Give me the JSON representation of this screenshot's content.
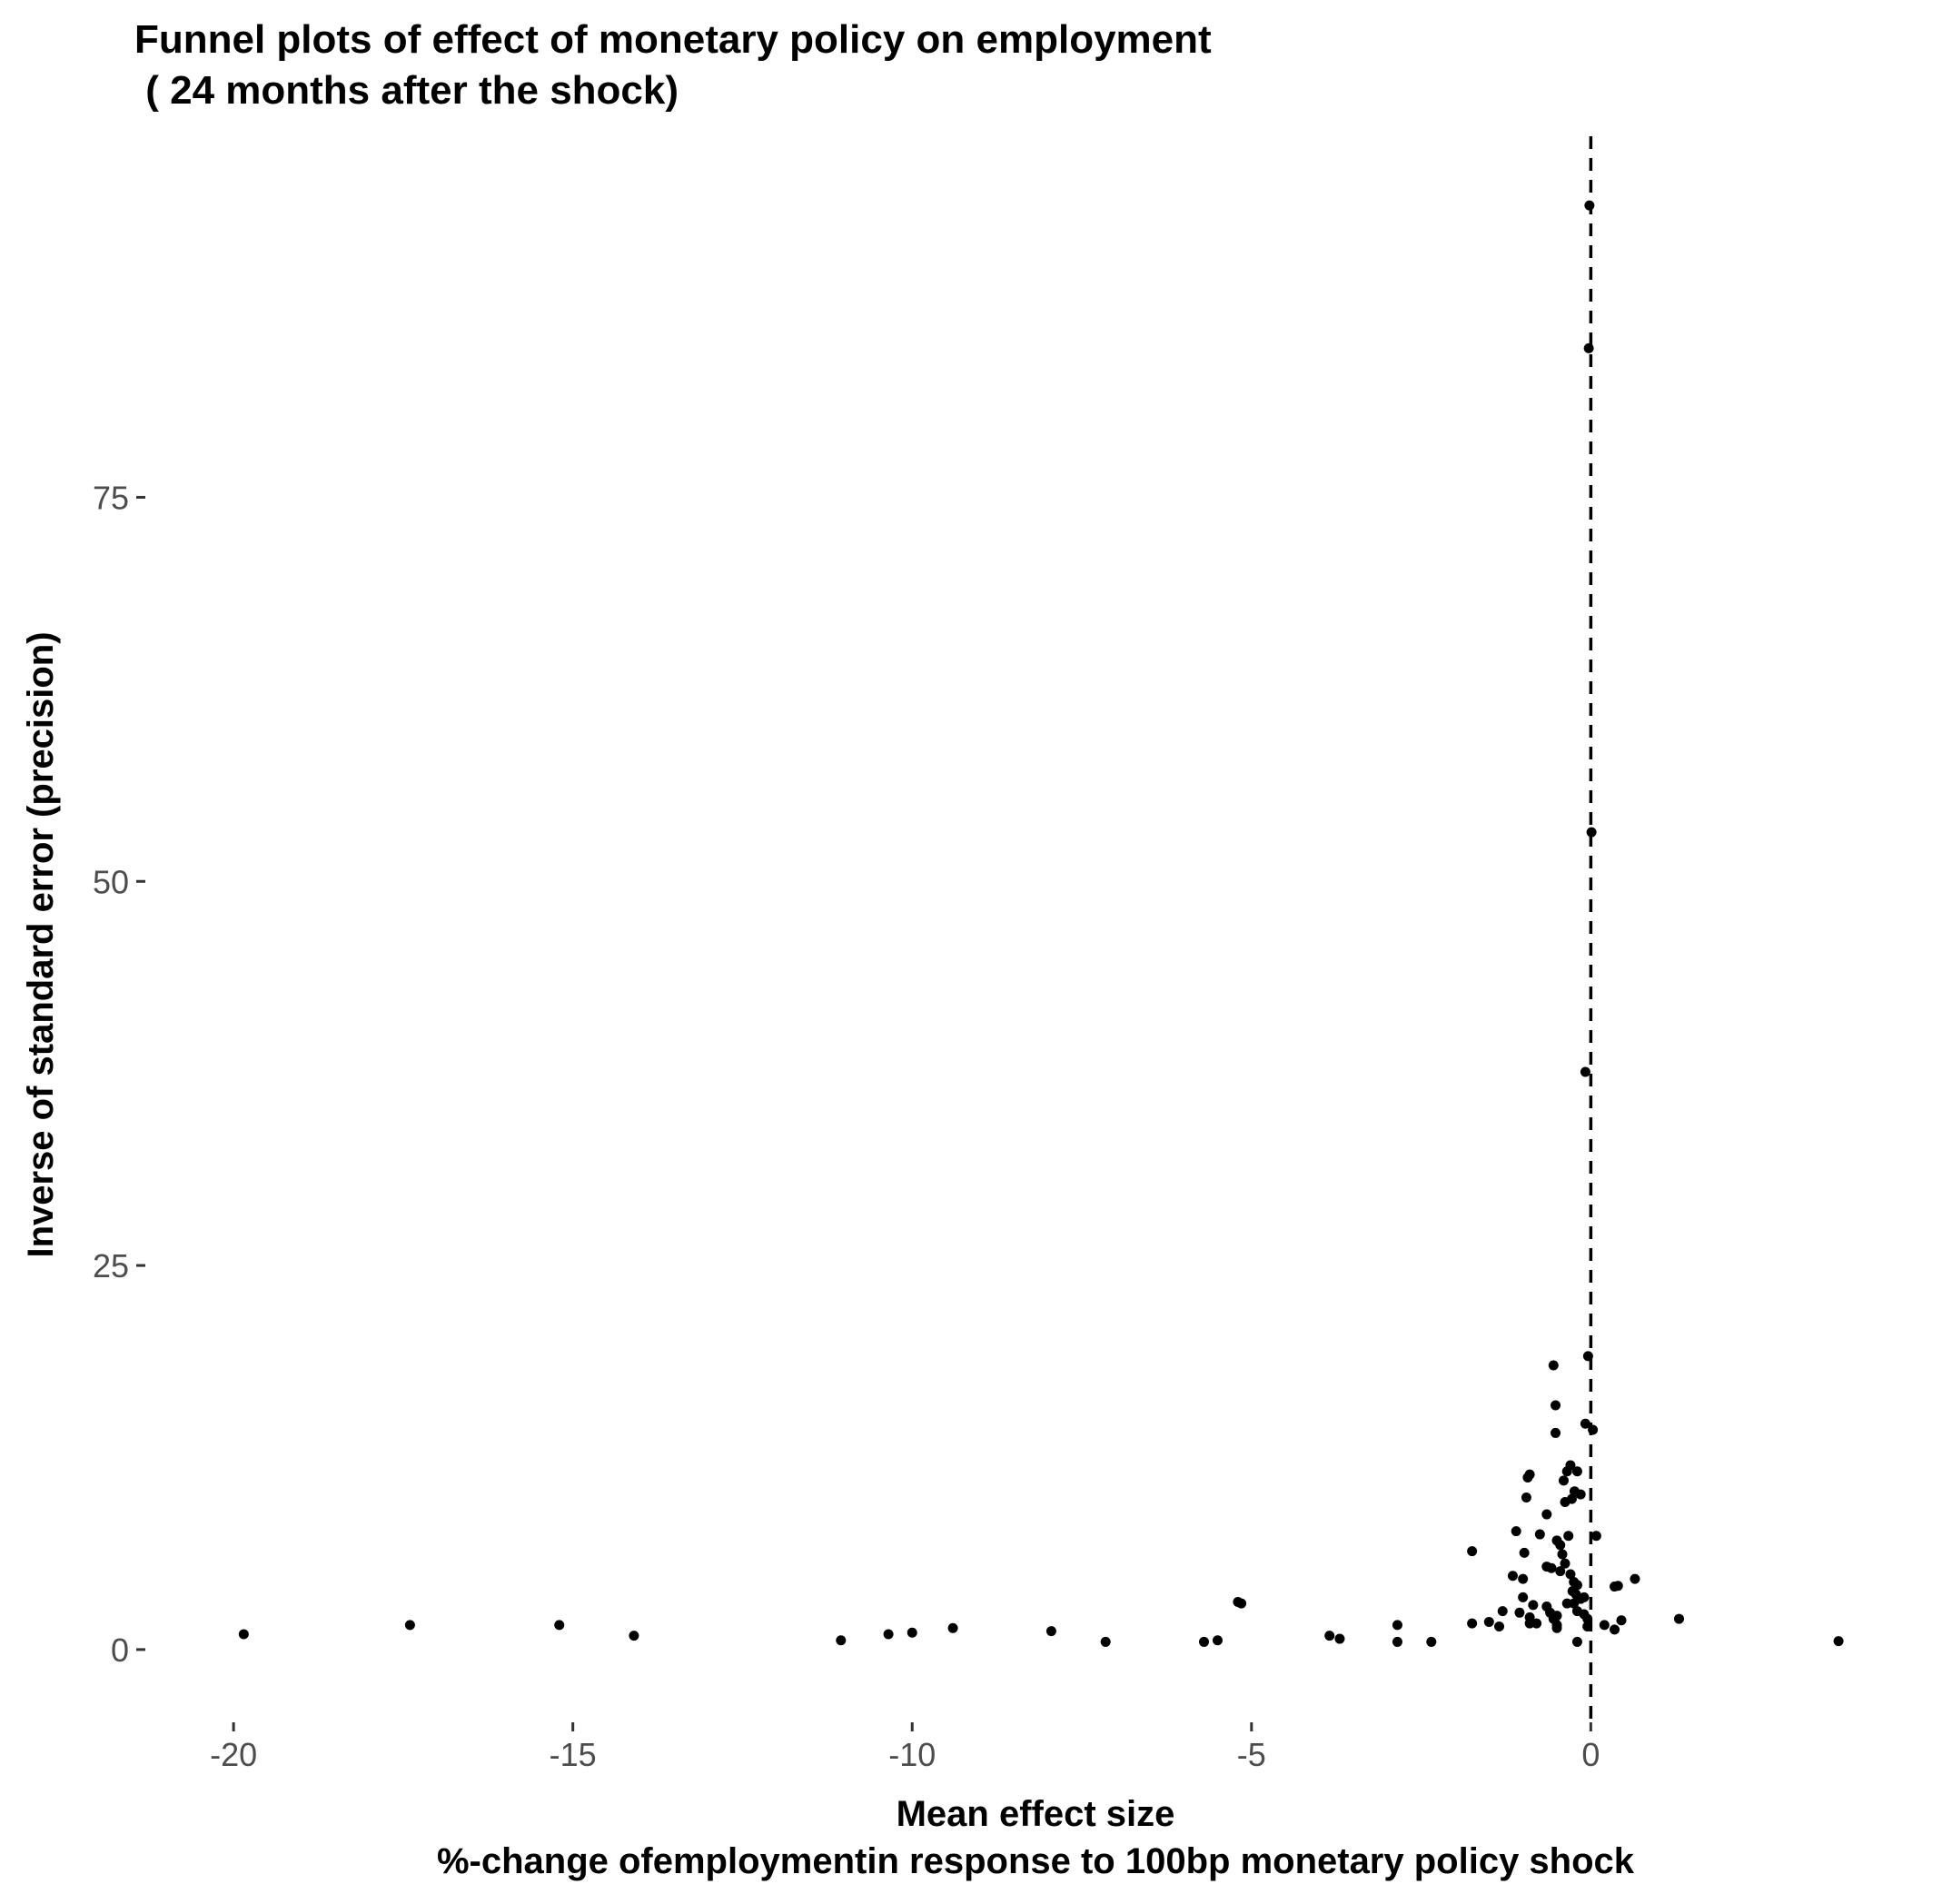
{
  "chart_data": {
    "type": "scatter",
    "title_lines": [
      "Funnel plots of effect of monetary policy on employment",
      " ( 24 months after the shock)"
    ],
    "xlabel_lines": [
      "Mean effect size",
      "%-change ofemploymentin response to 100bp monetary policy shock"
    ],
    "ylabel": "Inverse of standard error (precision)",
    "xlim": [
      -21.3,
      4.8
    ],
    "ylim": [
      -4.5,
      98.5
    ],
    "x_ticks": [
      {
        "value": -20,
        "label": "-20"
      },
      {
        "value": -15,
        "label": "-15"
      },
      {
        "value": -10,
        "label": "-10"
      },
      {
        "value": -5,
        "label": "-5"
      },
      {
        "value": 0,
        "label": "0"
      }
    ],
    "y_ticks": [
      {
        "value": 0,
        "label": "0"
      },
      {
        "value": 25,
        "label": "25"
      },
      {
        "value": 50,
        "label": "50"
      },
      {
        "value": 75,
        "label": "75"
      }
    ],
    "grid": false,
    "reference_line": {
      "x": 0,
      "style": "dashed"
    },
    "points": [
      {
        "x": -0.02,
        "y": 94.0
      },
      {
        "x": -0.03,
        "y": 84.7
      },
      {
        "x": 0.01,
        "y": 53.2
      },
      {
        "x": -0.08,
        "y": 37.6
      },
      {
        "x": -0.04,
        "y": 19.1
      },
      {
        "x": -0.55,
        "y": 18.5
      },
      {
        "x": -0.52,
        "y": 15.9
      },
      {
        "x": -0.52,
        "y": 14.1
      },
      {
        "x": -0.08,
        "y": 14.7
      },
      {
        "x": 0.03,
        "y": 14.3
      },
      {
        "x": -0.9,
        "y": 11.4
      },
      {
        "x": -0.93,
        "y": 11.2
      },
      {
        "x": -0.4,
        "y": 11.0
      },
      {
        "x": -0.35,
        "y": 11.6
      },
      {
        "x": -0.3,
        "y": 12.0
      },
      {
        "x": -0.2,
        "y": 11.6
      },
      {
        "x": -0.95,
        "y": 9.9
      },
      {
        "x": -0.38,
        "y": 9.6
      },
      {
        "x": -0.28,
        "y": 9.8
      },
      {
        "x": -0.24,
        "y": 10.3
      },
      {
        "x": -0.15,
        "y": 10.1
      },
      {
        "x": -0.65,
        "y": 8.8
      },
      {
        "x": -1.1,
        "y": 7.7
      },
      {
        "x": -0.75,
        "y": 7.5
      },
      {
        "x": -0.5,
        "y": 7.1
      },
      {
        "x": -0.45,
        "y": 6.8
      },
      {
        "x": -0.33,
        "y": 7.4
      },
      {
        "x": 0.08,
        "y": 7.4
      },
      {
        "x": -1.75,
        "y": 6.4
      },
      {
        "x": -0.98,
        "y": 6.3
      },
      {
        "x": -0.42,
        "y": 6.2
      },
      {
        "x": -0.65,
        "y": 5.4
      },
      {
        "x": -0.58,
        "y": 5.3
      },
      {
        "x": -0.38,
        "y": 5.6
      },
      {
        "x": -0.45,
        "y": 5.1
      },
      {
        "x": -1.15,
        "y": 4.8
      },
      {
        "x": -1.0,
        "y": 4.6
      },
      {
        "x": -0.3,
        "y": 4.9
      },
      {
        "x": -0.25,
        "y": 4.4
      },
      {
        "x": -0.2,
        "y": 4.2
      },
      {
        "x": 0.65,
        "y": 4.6
      },
      {
        "x": 0.35,
        "y": 4.1
      },
      {
        "x": 0.4,
        "y": 4.15
      },
      {
        "x": -0.27,
        "y": 3.8
      },
      {
        "x": -0.22,
        "y": 3.6
      },
      {
        "x": -1.0,
        "y": 3.4
      },
      {
        "x": -0.15,
        "y": 3.3
      },
      {
        "x": -0.1,
        "y": 3.4
      },
      {
        "x": -0.35,
        "y": 3.0
      },
      {
        "x": -0.25,
        "y": 3.0
      },
      {
        "x": -0.85,
        "y": 2.9
      },
      {
        "x": -0.65,
        "y": 2.8
      },
      {
        "x": -5.2,
        "y": 3.1
      },
      {
        "x": -5.15,
        "y": 3.0
      },
      {
        "x": -1.3,
        "y": 2.5
      },
      {
        "x": -1.05,
        "y": 2.4
      },
      {
        "x": -0.6,
        "y": 2.4
      },
      {
        "x": -0.5,
        "y": 2.2
      },
      {
        "x": -0.2,
        "y": 2.5
      },
      {
        "x": -0.1,
        "y": 2.3
      },
      {
        "x": -0.9,
        "y": 2.1
      },
      {
        "x": -0.55,
        "y": 2.0
      },
      {
        "x": -0.05,
        "y": 2.0
      },
      {
        "x": 1.3,
        "y": 2.0
      },
      {
        "x": 0.45,
        "y": 1.9
      },
      {
        "x": -1.5,
        "y": 1.8
      },
      {
        "x": -1.75,
        "y": 1.7
      },
      {
        "x": -0.9,
        "y": 1.7
      },
      {
        "x": -0.8,
        "y": 1.7
      },
      {
        "x": -0.5,
        "y": 1.6
      },
      {
        "x": 0.2,
        "y": 1.6
      },
      {
        "x": -17.4,
        "y": 1.6
      },
      {
        "x": -15.2,
        "y": 1.6
      },
      {
        "x": -2.85,
        "y": 1.6
      },
      {
        "x": -1.35,
        "y": 1.5
      },
      {
        "x": -0.5,
        "y": 1.4
      },
      {
        "x": -9.4,
        "y": 1.4
      },
      {
        "x": -0.05,
        "y": 1.5
      },
      {
        "x": 0.35,
        "y": 1.3
      },
      {
        "x": -7.95,
        "y": 1.2
      },
      {
        "x": -10.0,
        "y": 1.1
      },
      {
        "x": -19.85,
        "y": 1.0
      },
      {
        "x": -14.1,
        "y": 0.9
      },
      {
        "x": -10.35,
        "y": 1.0
      },
      {
        "x": -3.85,
        "y": 0.9
      },
      {
        "x": -3.7,
        "y": 0.7
      },
      {
        "x": -11.05,
        "y": 0.6
      },
      {
        "x": -5.5,
        "y": 0.6
      },
      {
        "x": -7.15,
        "y": 0.5
      },
      {
        "x": -5.7,
        "y": 0.5
      },
      {
        "x": -2.85,
        "y": 0.5
      },
      {
        "x": -2.35,
        "y": 0.5
      },
      {
        "x": -0.2,
        "y": 0.5
      },
      {
        "x": 3.65,
        "y": 0.55
      }
    ]
  }
}
